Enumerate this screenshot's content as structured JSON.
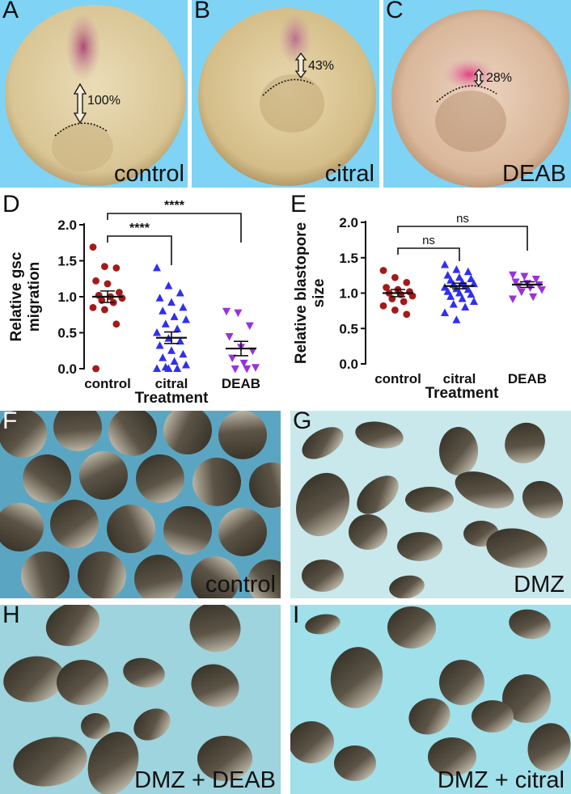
{
  "figure": {
    "panels": {
      "A": {
        "letter": "A",
        "caption": "control",
        "percent": "100%"
      },
      "B": {
        "letter": "B",
        "caption": "citral",
        "percent": "43%"
      },
      "C": {
        "letter": "C",
        "caption": "DEAB",
        "percent": "28%"
      },
      "D": {
        "letter": "D"
      },
      "E": {
        "letter": "E"
      },
      "F": {
        "letter": "F",
        "caption": "control"
      },
      "G": {
        "letter": "G",
        "caption": "DMZ"
      },
      "H": {
        "letter": "H",
        "caption": "DMZ + DEAB"
      },
      "I": {
        "letter": "I",
        "caption": "DMZ + citral"
      }
    },
    "colors": {
      "control": "#a31a1a",
      "citral": "#2f2ff0",
      "DEAB": "#9b30e0",
      "photo_background_blue": "#7fd3f5",
      "embryo_tan": "#dcc9a0",
      "stain_magenta": "#b8457a"
    }
  },
  "chart_data": [
    {
      "panel": "D",
      "type": "scatter",
      "ylabel": "Relative gsc\nmigration",
      "xlabel": "Treatment",
      "categories": [
        "control",
        "citral",
        "DEAB"
      ],
      "ylim": [
        0,
        2.0
      ],
      "yticks": [
        "0.0",
        "0.5",
        "1.0",
        "1.5",
        "2.0"
      ],
      "series": [
        {
          "name": "control",
          "marker": "circle",
          "mean": 1.0,
          "sem": 0.08,
          "values": [
            1.69,
            1.42,
            1.4,
            1.22,
            1.18,
            1.06,
            1.02,
            1.0,
            0.98,
            0.95,
            0.92,
            0.85,
            0.82,
            0.62,
            0.0
          ]
        },
        {
          "name": "citral",
          "marker": "triangle-up",
          "mean": 0.43,
          "sem": 0.08,
          "values": [
            1.4,
            1.15,
            1.05,
            0.98,
            0.92,
            0.85,
            0.8,
            0.72,
            0.68,
            0.62,
            0.55,
            0.5,
            0.42,
            0.38,
            0.32,
            0.25,
            0.2,
            0.15,
            0.1,
            0.05,
            0.02,
            0.0,
            0.0,
            0.0
          ]
        },
        {
          "name": "DEAB",
          "marker": "triangle-down",
          "mean": 0.28,
          "sem": 0.1,
          "values": [
            0.8,
            0.78,
            0.6,
            0.45,
            0.3,
            0.25,
            0.15,
            0.08,
            0.02,
            0.0,
            0.0
          ]
        }
      ],
      "significance": [
        {
          "from": "control",
          "to": "citral",
          "label": "****"
        },
        {
          "from": "control",
          "to": "DEAB",
          "label": "****"
        }
      ]
    },
    {
      "panel": "E",
      "type": "scatter",
      "ylabel": "Relative blastopore\nsize",
      "xlabel": "Treatment",
      "categories": [
        "control",
        "citral",
        "DEAB"
      ],
      "ylim": [
        0,
        2.0
      ],
      "yticks": [
        "0.0",
        "0.5",
        "1.0",
        "1.5",
        "2.0"
      ],
      "series": [
        {
          "name": "control",
          "marker": "circle",
          "mean": 1.0,
          "sem": 0.05,
          "values": [
            1.32,
            1.22,
            1.15,
            1.08,
            1.05,
            1.02,
            1.0,
            0.98,
            0.96,
            0.92,
            0.88,
            0.82,
            0.76,
            0.7
          ]
        },
        {
          "name": "citral",
          "marker": "triangle-up",
          "mean": 1.1,
          "sem": 0.04,
          "values": [
            1.4,
            1.33,
            1.3,
            1.25,
            1.22,
            1.2,
            1.18,
            1.15,
            1.13,
            1.12,
            1.1,
            1.08,
            1.06,
            1.05,
            1.02,
            1.0,
            0.98,
            0.95,
            0.92,
            0.88,
            0.84,
            0.8,
            0.72,
            0.62
          ]
        },
        {
          "name": "DEAB",
          "marker": "triangle-down",
          "mean": 1.12,
          "sem": 0.04,
          "values": [
            1.26,
            1.24,
            1.2,
            1.16,
            1.14,
            1.12,
            1.1,
            1.08,
            1.05,
            1.02,
            0.95,
            0.92
          ]
        }
      ],
      "significance": [
        {
          "from": "control",
          "to": "citral",
          "label": "ns"
        },
        {
          "from": "control",
          "to": "DEAB",
          "label": "ns"
        }
      ]
    }
  ]
}
